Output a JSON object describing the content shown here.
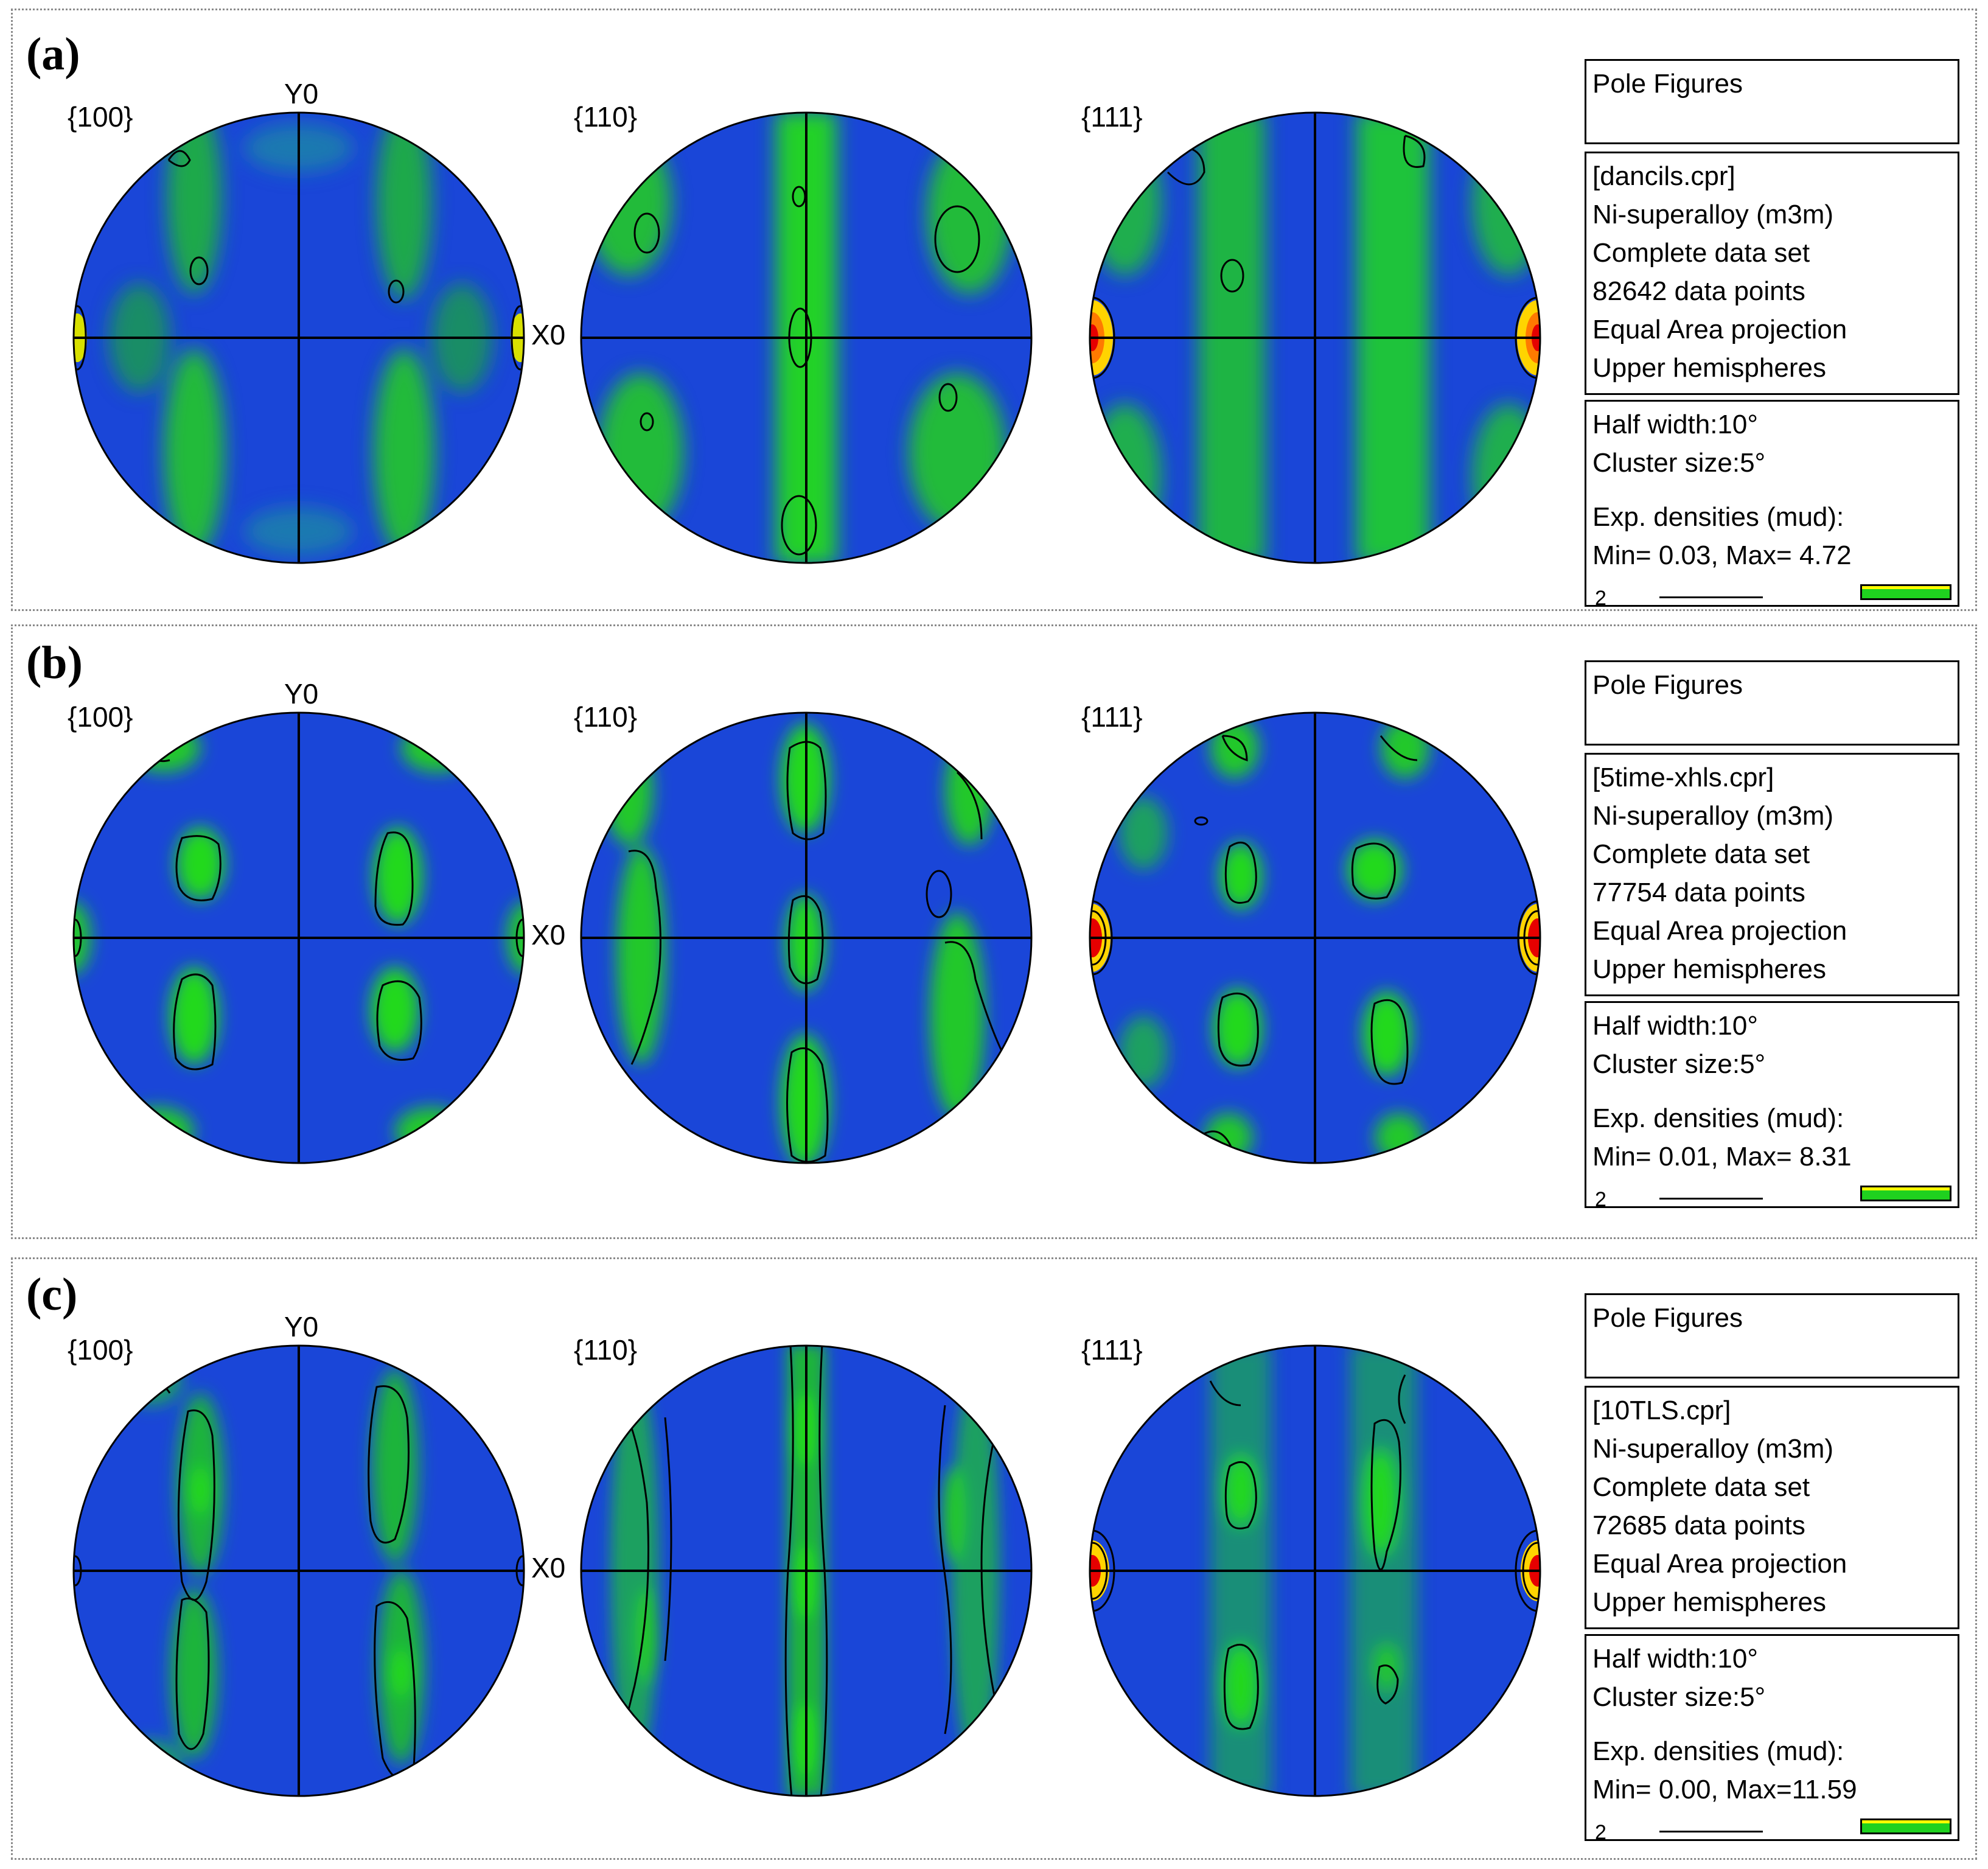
{
  "colors": {
    "background_density": "#1a46d8",
    "low_density": "#0d8bd6",
    "medium_density": "#22d91f",
    "high_density": "#ffd400",
    "max_density": "#e60000",
    "contour": "#000000",
    "axis": "#000000"
  },
  "panels": [
    {
      "label": "(a)",
      "planes": [
        "{100}",
        "{110}",
        "{111}"
      ],
      "y_axis_label": "Y0",
      "x_axis_label": "X0",
      "info": {
        "title": "Pole Figures",
        "file": "[dancils.cpr]",
        "phase": "Ni-superalloy (m3m)",
        "dataset": "Complete data set",
        "points": "82642 data points",
        "projection": "Equal Area projection",
        "hemisphere": "Upper hemispheres",
        "half_width": "Half width:10°",
        "cluster": "Cluster size:5°",
        "densities_label": "Exp. densities (mud):",
        "min_max": "Min= 0.03, Max= 4.72",
        "scale_value": "2"
      }
    },
    {
      "label": "(b)",
      "planes": [
        "{100}",
        "{110}",
        "{111}"
      ],
      "y_axis_label": "Y0",
      "x_axis_label": "X0",
      "info": {
        "title": "Pole Figures",
        "file": "[5time-xhls.cpr]",
        "phase": "Ni-superalloy (m3m)",
        "dataset": "Complete data set",
        "points": "77754 data points",
        "projection": "Equal Area projection",
        "hemisphere": "Upper hemispheres",
        "half_width": "Half width:10°",
        "cluster": "Cluster size:5°",
        "densities_label": "Exp. densities (mud):",
        "min_max": "Min= 0.01, Max= 8.31",
        "scale_value": "2"
      }
    },
    {
      "label": "(c)",
      "planes": [
        "{100}",
        "{110}",
        "{111}"
      ],
      "y_axis_label": "Y0",
      "x_axis_label": "X0",
      "info": {
        "title": "Pole Figures",
        "file": "[10TLS.cpr]",
        "phase": "Ni-superalloy (m3m)",
        "dataset": "Complete data set",
        "points": "72685 data points",
        "projection": "Equal Area projection",
        "hemisphere": "Upper hemispheres",
        "half_width": "Half width:10°",
        "cluster": "Cluster size:5°",
        "densities_label": "Exp. densities (mud):",
        "min_max": "Min= 0.00, Max=11.59",
        "scale_value": "2"
      }
    }
  ]
}
